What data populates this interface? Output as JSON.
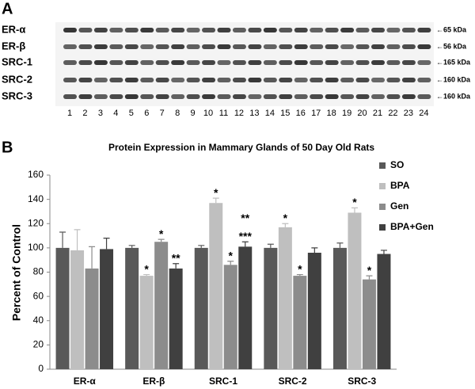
{
  "panel_a": {
    "label": "A",
    "rows": [
      {
        "name": "ER-α",
        "kda": "←65 kDa"
      },
      {
        "name": "ER-β",
        "kda": "←56 kDa"
      },
      {
        "name": "SRC-1",
        "kda": "←165 kDa"
      },
      {
        "name": "SRC-2",
        "kda": "←160 kDa"
      },
      {
        "name": "SRC-3",
        "kda": "←160 kDa"
      }
    ],
    "lanes": [
      "1",
      "2",
      "3",
      "4",
      "5",
      "6",
      "7",
      "8",
      "9",
      "10",
      "11",
      "12",
      "13",
      "14",
      "15",
      "16",
      "17",
      "18",
      "19",
      "20",
      "21",
      "22",
      "23",
      "24"
    ]
  },
  "panel_b_label": "B",
  "chart_data": {
    "type": "bar",
    "title": "Protein Expression in Mammary Glands of 50 Day Old Rats",
    "ylabel": "Percent of Control",
    "categories": [
      "ER-α",
      "ER-β",
      "SRC-1",
      "SRC-2",
      "SRC-3"
    ],
    "series": [
      {
        "name": "SO",
        "color": "#595959",
        "values": [
          100,
          100,
          100,
          100,
          100
        ],
        "errors": [
          13,
          2,
          2,
          3,
          4
        ]
      },
      {
        "name": "BPA",
        "color": "#bfbfbf",
        "values": [
          98,
          77,
          137,
          117,
          129
        ],
        "errors": [
          17,
          1,
          4,
          3,
          4
        ]
      },
      {
        "name": "Gen",
        "color": "#8c8c8c",
        "values": [
          83,
          105,
          86,
          77,
          74
        ],
        "errors": [
          18,
          2,
          3,
          1,
          3
        ]
      },
      {
        "name": "BPA+Gen",
        "color": "#404040",
        "values": [
          99,
          83,
          101,
          96,
          95
        ],
        "errors": [
          9,
          4,
          4,
          4,
          3
        ]
      }
    ],
    "annotations": [
      {
        "text": "*",
        "category": 1,
        "series": 1
      },
      {
        "text": "*",
        "category": 1,
        "series": 2
      },
      {
        "text": "**",
        "category": 1,
        "series": 3
      },
      {
        "text": "*",
        "category": 2,
        "series": 1
      },
      {
        "text": "*",
        "category": 2,
        "series": 2
      },
      {
        "text": "***",
        "category": 2,
        "series": 3
      },
      {
        "text": "**",
        "category": 2,
        "series": 3
      },
      {
        "text": "*",
        "category": 3,
        "series": 1
      },
      {
        "text": "*",
        "category": 3,
        "series": 2
      },
      {
        "text": "*",
        "category": 4,
        "series": 1
      },
      {
        "text": "*",
        "category": 4,
        "series": 2
      }
    ],
    "ylim": [
      0,
      160
    ],
    "yticks": [
      0,
      20,
      40,
      60,
      80,
      100,
      120,
      140,
      160
    ],
    "grid": false,
    "legend": "right"
  }
}
